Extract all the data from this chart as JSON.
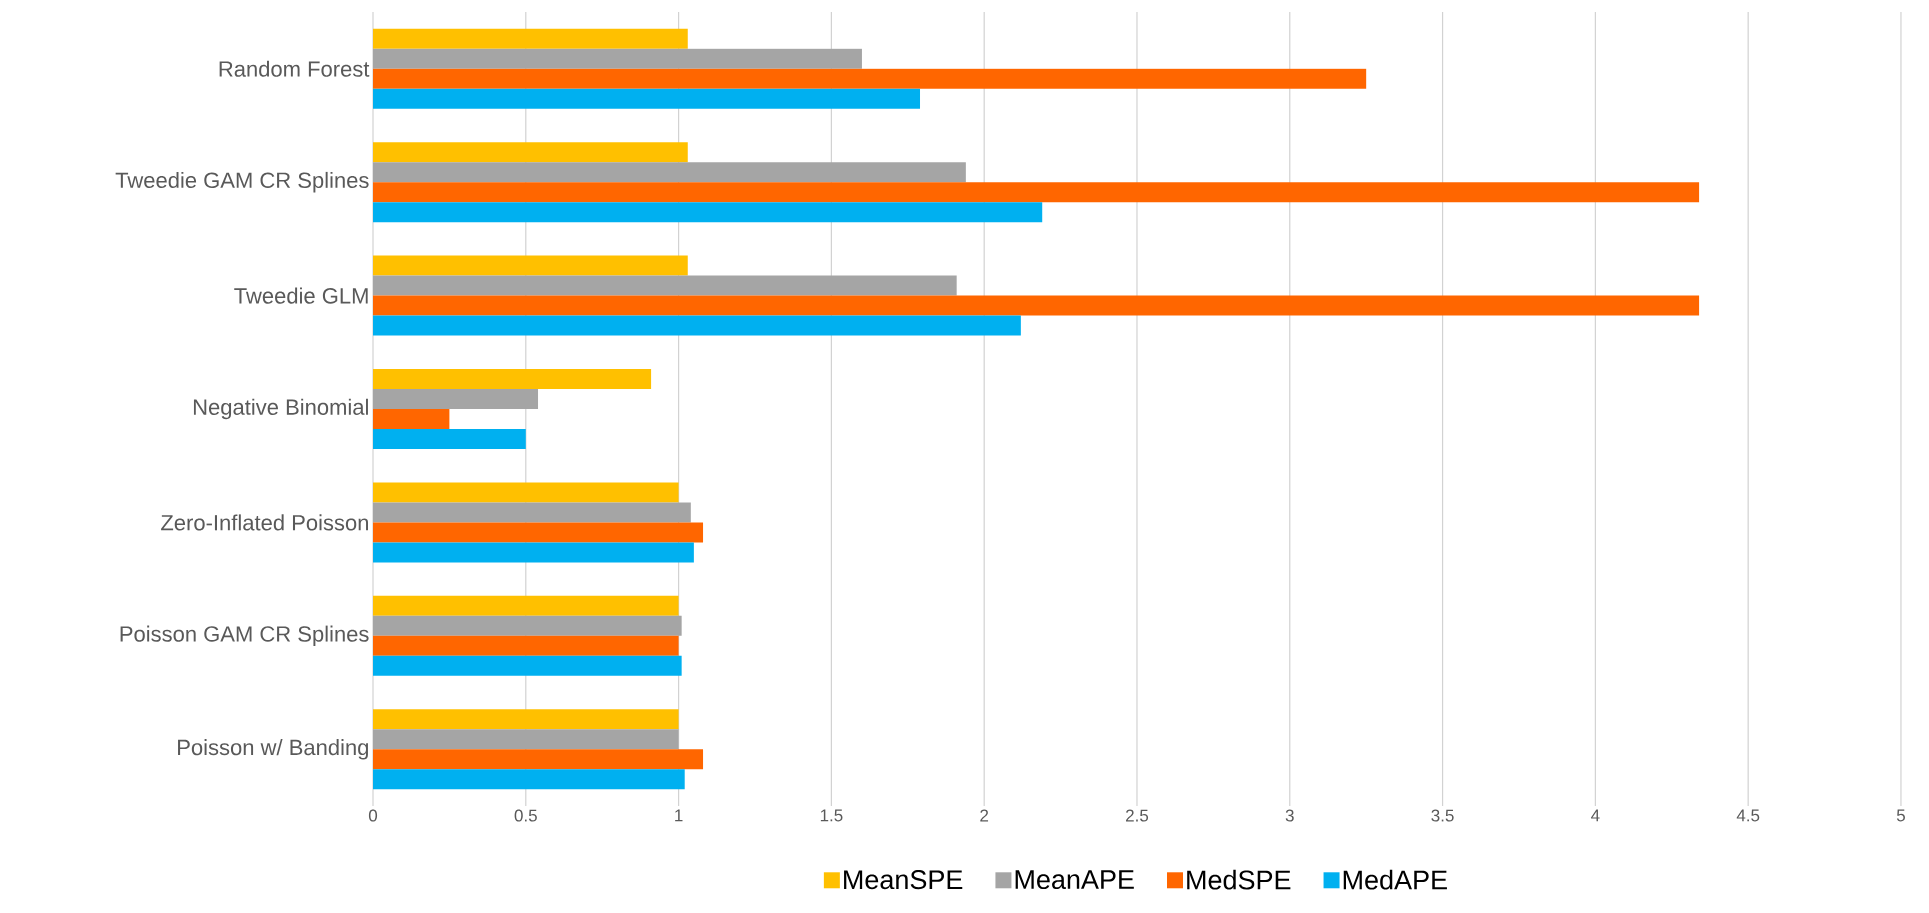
{
  "chart_data": {
    "type": "bar",
    "orientation": "horizontal",
    "categories": [
      "Random Forest",
      "Tweedie GAM CR Splines",
      "Tweedie GLM",
      "Negative Binomial",
      "Zero-Inflated Poisson",
      "Poisson GAM CR Splines",
      "Poisson w/ Banding"
    ],
    "series": [
      {
        "name": "MeanSPE",
        "color": "#ffc000",
        "values": [
          1.03,
          1.03,
          1.03,
          0.91,
          1.0,
          1.0,
          1.0
        ]
      },
      {
        "name": "MeanAPE",
        "color": "#a5a5a5",
        "values": [
          1.6,
          1.94,
          1.91,
          0.54,
          1.04,
          1.01,
          1.0
        ]
      },
      {
        "name": "MedSPE",
        "color": "#ff6600",
        "values": [
          3.25,
          4.34,
          4.34,
          0.25,
          1.08,
          1.0,
          1.08
        ]
      },
      {
        "name": "MedAPE",
        "color": "#00b0f0",
        "values": [
          1.79,
          2.19,
          2.12,
          0.5,
          1.05,
          1.01,
          1.02
        ]
      }
    ],
    "xlim": [
      0,
      5
    ],
    "xticks": [
      0,
      0.5,
      1,
      1.5,
      2,
      2.5,
      3,
      3.5,
      4,
      4.5,
      5
    ],
    "grid": "x",
    "legend": "bottom"
  }
}
